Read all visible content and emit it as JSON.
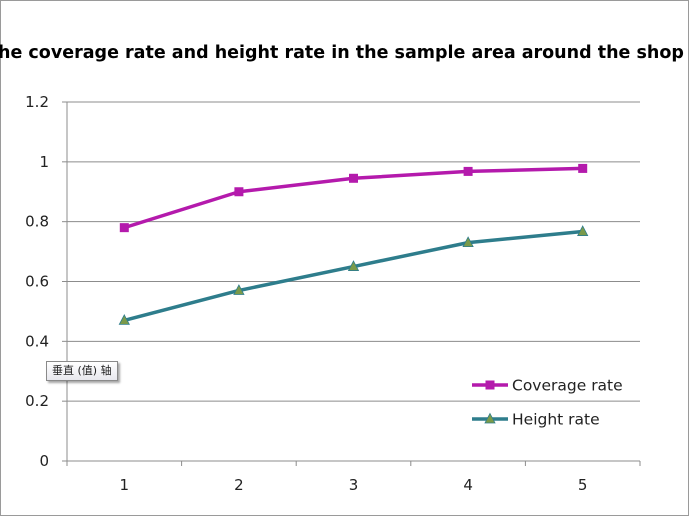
{
  "chart_data": {
    "type": "line",
    "title": "The coverage rate and height rate in the sample area around the shop",
    "xlabel": "",
    "ylabel": "",
    "categories": [
      "1",
      "2",
      "3",
      "4",
      "5"
    ],
    "ylim": [
      0,
      1.2
    ],
    "yticks": [
      "0",
      "0.2",
      "0.4",
      "0.6",
      "0.8",
      "1",
      "1.2"
    ],
    "grid": "horizontal major gridlines",
    "legend": "bottom-right",
    "series": [
      {
        "name": "Coverage rate",
        "values": [
          0.78,
          0.9,
          0.945,
          0.968,
          0.978
        ],
        "color": "#b41aac",
        "marker": "square"
      },
      {
        "name": "Height rate",
        "values": [
          0.47,
          0.57,
          0.65,
          0.73,
          0.767
        ],
        "color": "#2e7d8c",
        "marker": "triangle",
        "marker_color": "#7a9a4a"
      }
    ]
  },
  "tooltip": {
    "text": "垂直 (值) 轴"
  }
}
